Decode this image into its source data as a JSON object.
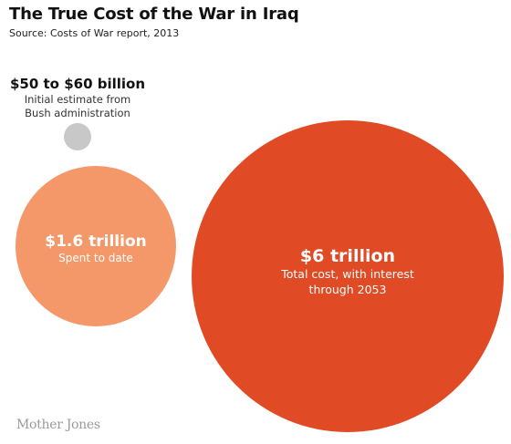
{
  "header": {
    "title": "The True Cost of the War in Iraq",
    "source": "Source: Costs of War report, 2013"
  },
  "chart_data": {
    "type": "bubble",
    "units": "USD",
    "items": [
      {
        "label": "$50 to $60 billion",
        "description_lines": [
          "Initial estimate from",
          "Bush administration"
        ],
        "value": 60000000000,
        "color": "#c8c8c8"
      },
      {
        "label": "$1.6 trillion",
        "description_lines": [
          "Spent to date"
        ],
        "value": 1600000000000,
        "color": "#f4986a"
      },
      {
        "label": "$6 trillion",
        "description_lines": [
          "Total cost, with interest",
          "through 2053"
        ],
        "value": 6000000000000,
        "color": "#e04a25"
      }
    ]
  },
  "footer": {
    "logo": "Mother Jones"
  }
}
